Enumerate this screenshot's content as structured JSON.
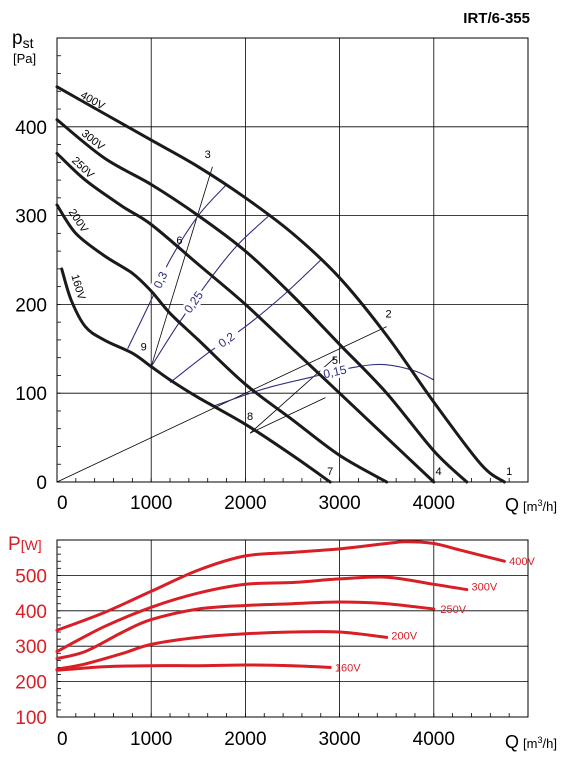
{
  "title": "IRT/6-355",
  "colors": {
    "pressure": "#1a1a1a",
    "power": "#d81f26",
    "efficiency": "#2f2f7e",
    "grid": "#000000"
  },
  "chart_data": [
    {
      "type": "line",
      "ylabel_main": "p",
      "ylabel_sub": "st",
      "yunit": "[Pa]",
      "xlabel": "Q",
      "xunit_pre": "[m",
      "xunit_sup": "3",
      "xunit_post": "/h]",
      "xlim": [
        0,
        5000
      ],
      "ylim": [
        0,
        500
      ],
      "x_ticks": [
        0,
        1000,
        2000,
        3000,
        4000
      ],
      "y_ticks": [
        0,
        100,
        200,
        300,
        400
      ],
      "grid": true,
      "series": [
        {
          "name": "400V",
          "x": [
            0,
            500,
            1000,
            1500,
            2000,
            2500,
            3000,
            3500,
            4000,
            4500,
            4750
          ],
          "y": [
            445,
            415,
            385,
            355,
            320,
            280,
            230,
            165,
            90,
            20,
            0
          ]
        },
        {
          "name": "300V",
          "x": [
            0,
            500,
            1000,
            1500,
            2000,
            2500,
            3000,
            3500,
            4000,
            4350
          ],
          "y": [
            408,
            365,
            335,
            300,
            260,
            210,
            155,
            100,
            35,
            0
          ]
        },
        {
          "name": "250V",
          "x": [
            0,
            300,
            700,
            1000,
            1500,
            2000,
            2500,
            3000,
            3500,
            4000
          ],
          "y": [
            370,
            340,
            310,
            290,
            245,
            200,
            150,
            100,
            50,
            0
          ]
        },
        {
          "name": "200V",
          "x": [
            0,
            200,
            500,
            800,
            1000,
            1200,
            1500,
            2000,
            2500,
            3000,
            3500
          ],
          "y": [
            312,
            280,
            255,
            235,
            215,
            190,
            160,
            110,
            70,
            30,
            0
          ]
        },
        {
          "name": "160V",
          "x": [
            50,
            150,
            300,
            500,
            800,
            1000,
            1200,
            1500,
            2000,
            2500,
            2900
          ],
          "y": [
            240,
            205,
            175,
            160,
            145,
            130,
            115,
            95,
            65,
            30,
            0
          ]
        }
      ],
      "efficiency_curves": [
        {
          "label": "0,3",
          "x": [
            750,
            1000,
            1200,
            1500,
            1800
          ],
          "y": [
            150,
            205,
            250,
            300,
            335
          ]
        },
        {
          "label": "0,25",
          "x": [
            1000,
            1300,
            1600,
            1900,
            2250
          ],
          "y": [
            130,
            180,
            225,
            265,
            300
          ]
        },
        {
          "label": "0,2",
          "x": [
            1200,
            1600,
            2000,
            2400,
            2800
          ],
          "y": [
            112,
            145,
            175,
            210,
            250
          ]
        },
        {
          "label": "0,15",
          "x": [
            1650,
            2200,
            2700,
            3200,
            3500,
            3800,
            4000
          ],
          "y": [
            85,
            105,
            118,
            130,
            132,
            125,
            115
          ]
        }
      ],
      "system_lines": [
        {
          "label": "1",
          "x": [
            0,
            4750
          ],
          "y": [
            0,
            0
          ]
        },
        {
          "label": "2",
          "x": [
            0,
            3500
          ],
          "y": [
            0,
            175
          ]
        },
        {
          "label": "3",
          "x": [
            1000,
            1650
          ],
          "y": [
            130,
            355
          ]
        },
        {
          "label": "4",
          "x": [
            0,
            4000
          ],
          "y": [
            0,
            0
          ]
        },
        {
          "label": "5",
          "x": [
            2050,
            2950
          ],
          "y": [
            55,
            140
          ]
        },
        {
          "label": "6",
          "x": [
            1150,
            1400
          ],
          "y": [
            0,
            0
          ]
        },
        {
          "label": "7",
          "x": [
            0,
            2850
          ],
          "y": [
            0,
            0
          ]
        },
        {
          "label": "8",
          "x": [
            2050,
            2850
          ],
          "y": [
            55,
            95
          ]
        },
        {
          "label": "9",
          "x": [
            0,
            1000
          ],
          "y": [
            0,
            0
          ]
        }
      ],
      "point_labels": [
        {
          "label": "1",
          "x": 4800,
          "y": 8
        },
        {
          "label": "2",
          "x": 3520,
          "y": 185
        },
        {
          "label": "3",
          "x": 1600,
          "y": 365
        },
        {
          "label": "4",
          "x": 4050,
          "y": 8
        },
        {
          "label": "5",
          "x": 2950,
          "y": 133
        },
        {
          "label": "6",
          "x": 1300,
          "y": 268
        },
        {
          "label": "7",
          "x": 2900,
          "y": 8
        },
        {
          "label": "8",
          "x": 2050,
          "y": 70
        },
        {
          "label": "9",
          "x": 920,
          "y": 148
        }
      ]
    },
    {
      "type": "line",
      "ylabel_main": "P",
      "yunit": "[W]",
      "xlabel": "Q",
      "xunit_pre": "[m",
      "xunit_sup": "3",
      "xunit_post": "/h]",
      "xlim": [
        0,
        5000
      ],
      "ylim": [
        100,
        600
      ],
      "x_ticks": [
        0,
        1000,
        2000,
        3000,
        4000
      ],
      "y_ticks": [
        100,
        200,
        300,
        400,
        500
      ],
      "grid": true,
      "series": [
        {
          "name": "400V",
          "x": [
            0,
            500,
            1000,
            1500,
            2000,
            2500,
            3000,
            3500,
            3700,
            4000,
            4300,
            4750
          ],
          "y": [
            345,
            395,
            455,
            515,
            555,
            565,
            575,
            590,
            595,
            590,
            570,
            540
          ]
        },
        {
          "name": "300V",
          "x": [
            0,
            500,
            1000,
            1500,
            2000,
            2500,
            3000,
            3500,
            4000,
            4350
          ],
          "y": [
            285,
            355,
            410,
            450,
            475,
            480,
            490,
            495,
            475,
            460
          ]
        },
        {
          "name": "250V",
          "x": [
            0,
            300,
            700,
            1000,
            1500,
            2000,
            2500,
            3000,
            3500,
            4000
          ],
          "y": [
            265,
            285,
            340,
            375,
            405,
            415,
            420,
            425,
            420,
            405
          ]
        },
        {
          "name": "200V",
          "x": [
            0,
            300,
            700,
            1000,
            1500,
            2000,
            2500,
            3000,
            3500
          ],
          "y": [
            235,
            250,
            280,
            305,
            325,
            335,
            340,
            340,
            325
          ]
        },
        {
          "name": "160V",
          "x": [
            0,
            500,
            1000,
            1500,
            2000,
            2500,
            2900
          ],
          "y": [
            232,
            242,
            245,
            245,
            247,
            245,
            240
          ]
        }
      ],
      "series_label_positions": [
        {
          "name": "400V",
          "x": 4800,
          "y": 540
        },
        {
          "name": "300V",
          "x": 4400,
          "y": 468
        },
        {
          "name": "250V",
          "x": 4070,
          "y": 405
        },
        {
          "name": "200V",
          "x": 3550,
          "y": 330
        },
        {
          "name": "160V",
          "x": 2950,
          "y": 240
        }
      ]
    }
  ]
}
